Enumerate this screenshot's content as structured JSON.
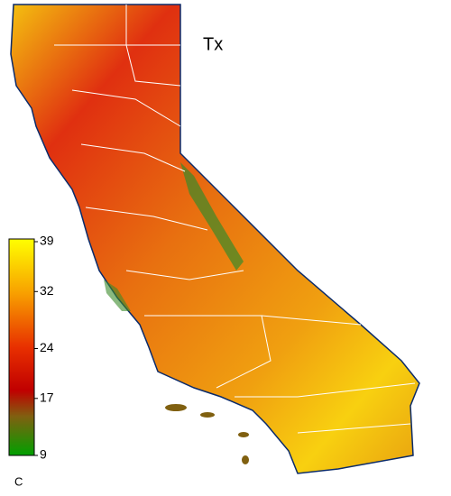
{
  "map": {
    "title": "Tx",
    "colorbar": {
      "unit": "C",
      "lim": [
        9,
        39
      ],
      "ticks": [
        39,
        32,
        24,
        17,
        9
      ]
    }
  }
}
